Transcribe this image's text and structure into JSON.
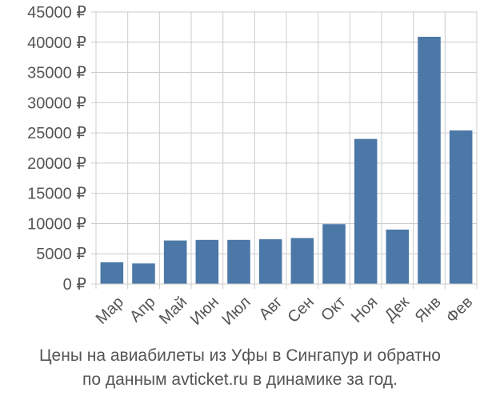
{
  "chart_data": {
    "type": "bar",
    "title": "Цены на авиабилеты из Уфы в Сингапур и обратно по данным avticket.ru в динамике за год.",
    "caption_lines": [
      "Цены на авиабилеты из Уфы в Сингапур и обратно",
      "по данным avticket.ru в динамике за год."
    ],
    "categories": [
      "Мар",
      "Апр",
      "Май",
      "Июн",
      "Июл",
      "Авг",
      "Сен",
      "Окт",
      "Ноя",
      "Дек",
      "Янв",
      "Фев"
    ],
    "values": [
      3600,
      3400,
      7200,
      7300,
      7300,
      7400,
      7600,
      9900,
      24000,
      9000,
      40900,
      25400
    ],
    "y_ticks": [
      0,
      5000,
      10000,
      15000,
      20000,
      25000,
      30000,
      35000,
      40000,
      45000
    ],
    "y_tick_labels": [
      "0 ₽",
      "5000 ₽",
      "10000 ₽",
      "15000 ₽",
      "20000 ₽",
      "25000 ₽",
      "30000 ₽",
      "35000 ₽",
      "40000 ₽",
      "45000 ₽"
    ],
    "ylim": [
      0,
      45000
    ],
    "xlabel": "",
    "ylabel": "",
    "grid": true,
    "legend": "none",
    "bar_color": "#4c78a8"
  }
}
